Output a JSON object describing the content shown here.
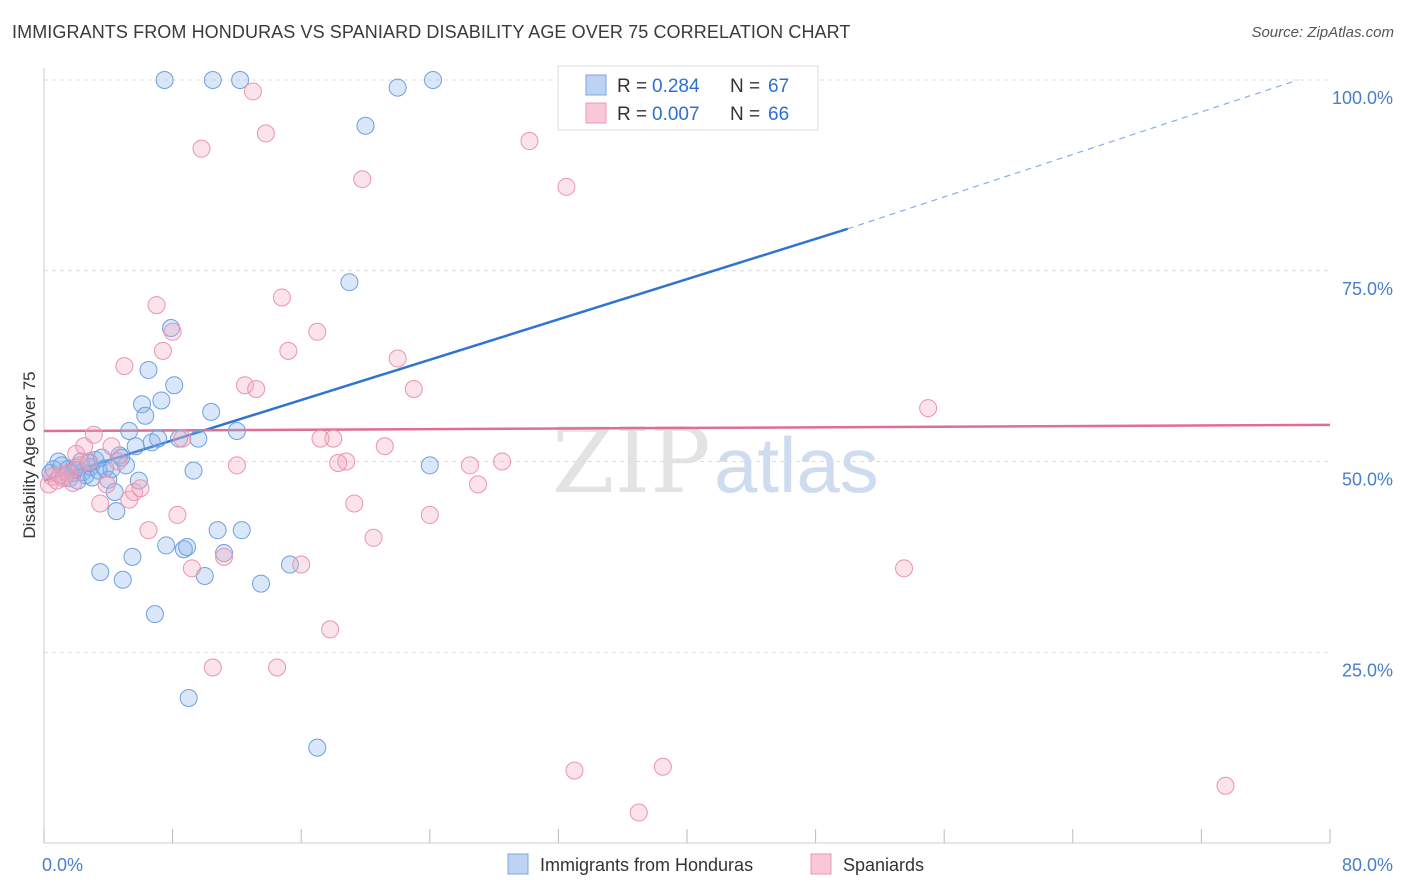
{
  "title": "IMMIGRANTS FROM HONDURAS VS SPANIARD DISABILITY AGE OVER 75 CORRELATION CHART",
  "source": "Source: ZipAtlas.com",
  "watermark": {
    "zip": "ZIP",
    "atlas": "atlas"
  },
  "chart_data": {
    "type": "scatter",
    "title": "IMMIGRANTS FROM HONDURAS VS SPANIARD DISABILITY AGE OVER 75 CORRELATION CHART",
    "xlabel": "",
    "ylabel": "Disability Age Over 75",
    "xlim": [
      0,
      80
    ],
    "ylim": [
      0,
      100
    ],
    "x_tick_labels": [
      {
        "value": 0,
        "label": "0.0%"
      },
      {
        "value": 80,
        "label": "80.0%"
      }
    ],
    "y_tick_labels": [
      {
        "value": 25,
        "label": "25.0%"
      },
      {
        "value": 50,
        "label": "50.0%"
      },
      {
        "value": 75,
        "label": "75.0%"
      },
      {
        "value": 100,
        "label": "100.0%"
      }
    ],
    "legend": [
      {
        "name": "Immigrants from Honduras",
        "color": "#89b4ea",
        "r_label": "R =",
        "r": "0.284",
        "n_label": "N =",
        "n": "67"
      },
      {
        "name": "Spaniards",
        "color": "#f2a7bf",
        "r_label": "R =",
        "r": "0.007",
        "n_label": "N =",
        "n": "66"
      }
    ],
    "series": [
      {
        "name": "Immigrants from Honduras",
        "color": "#89b4ea",
        "trend_color": "#2f74d0",
        "trend": {
          "x0": 0,
          "y0": 47.5,
          "x1": 50,
          "y1": 80.5,
          "dash_to_x": 78,
          "dash_to_y": 100
        },
        "points": [
          [
            0.4,
            48.5
          ],
          [
            0.6,
            49
          ],
          [
            0.9,
            50
          ],
          [
            1.1,
            49.5
          ],
          [
            1.3,
            48
          ],
          [
            1.5,
            49
          ],
          [
            1.6,
            47.8
          ],
          [
            1.8,
            48.5
          ],
          [
            2.0,
            49.2
          ],
          [
            2.1,
            47.5
          ],
          [
            2.3,
            50
          ],
          [
            2.4,
            48.6
          ],
          [
            2.6,
            48.2
          ],
          [
            2.9,
            49.3
          ],
          [
            3.0,
            47.9
          ],
          [
            3.2,
            50.2
          ],
          [
            3.4,
            48.8
          ],
          [
            3.6,
            50.5
          ],
          [
            3.8,
            49.1
          ],
          [
            4.0,
            47.6
          ],
          [
            4.2,
            49
          ],
          [
            4.4,
            46
          ],
          [
            4.5,
            43.5
          ],
          [
            4.7,
            50.8
          ],
          [
            4.9,
            34.5
          ],
          [
            5.1,
            49.5
          ],
          [
            5.3,
            54
          ],
          [
            5.5,
            37.5
          ],
          [
            5.7,
            52
          ],
          [
            5.9,
            47.5
          ],
          [
            6.1,
            57.5
          ],
          [
            6.3,
            56
          ],
          [
            6.5,
            62
          ],
          [
            6.7,
            52.5
          ],
          [
            6.9,
            30
          ],
          [
            7.1,
            53
          ],
          [
            7.3,
            58
          ],
          [
            7.6,
            39
          ],
          [
            7.9,
            67.5
          ],
          [
            8.1,
            60
          ],
          [
            8.4,
            53
          ],
          [
            8.7,
            38.5
          ],
          [
            8.9,
            38.8
          ],
          [
            9.3,
            48.8
          ],
          [
            9.6,
            53
          ],
          [
            10.0,
            35
          ],
          [
            10.4,
            56.5
          ],
          [
            10.8,
            41
          ],
          [
            11.2,
            38
          ],
          [
            12.0,
            54
          ],
          [
            12.3,
            41
          ],
          [
            13.5,
            34
          ],
          [
            15.3,
            36.5
          ],
          [
            17.0,
            12.5
          ],
          [
            19.0,
            73.5
          ],
          [
            20.0,
            94
          ],
          [
            22.0,
            99
          ],
          [
            24.0,
            49.5
          ],
          [
            9.0,
            19
          ],
          [
            7.5,
            100
          ],
          [
            10.5,
            100
          ],
          [
            12.2,
            100
          ],
          [
            24.2,
            100
          ],
          [
            3.5,
            35.5
          ],
          [
            4.8,
            50.5
          ],
          [
            2.8,
            49.8
          ],
          [
            1.9,
            48.9
          ]
        ]
      },
      {
        "name": "Spaniards",
        "color": "#f2a7bf",
        "trend_color": "#e06d93",
        "trend": {
          "x0": 0,
          "y0": 54,
          "x1": 80,
          "y1": 54.8
        },
        "points": [
          [
            0.3,
            47
          ],
          [
            0.5,
            48
          ],
          [
            0.8,
            47.5
          ],
          [
            1.0,
            48.2
          ],
          [
            1.2,
            47.8
          ],
          [
            1.5,
            48.5
          ],
          [
            1.8,
            47.2
          ],
          [
            2.0,
            51
          ],
          [
            2.2,
            49.5
          ],
          [
            2.5,
            52
          ],
          [
            2.8,
            50
          ],
          [
            3.1,
            53.5
          ],
          [
            3.5,
            44.5
          ],
          [
            3.9,
            47
          ],
          [
            4.2,
            52
          ],
          [
            4.6,
            50
          ],
          [
            5.0,
            62.5
          ],
          [
            5.3,
            45
          ],
          [
            5.6,
            46
          ],
          [
            6.0,
            46.5
          ],
          [
            6.5,
            41
          ],
          [
            7.0,
            70.5
          ],
          [
            7.4,
            64.5
          ],
          [
            8.0,
            67
          ],
          [
            8.3,
            43
          ],
          [
            8.6,
            53
          ],
          [
            9.2,
            36
          ],
          [
            9.8,
            91
          ],
          [
            10.5,
            23
          ],
          [
            11.2,
            37.5
          ],
          [
            12.0,
            49.5
          ],
          [
            12.5,
            60
          ],
          [
            13.2,
            59.5
          ],
          [
            13.8,
            93
          ],
          [
            14.5,
            23
          ],
          [
            14.8,
            71.5
          ],
          [
            15.2,
            64.5
          ],
          [
            16.0,
            36.5
          ],
          [
            17.0,
            67
          ],
          [
            17.8,
            28
          ],
          [
            18.0,
            53
          ],
          [
            18.8,
            50
          ],
          [
            19.3,
            44.5
          ],
          [
            19.8,
            87
          ],
          [
            20.5,
            40
          ],
          [
            21.2,
            52
          ],
          [
            22.0,
            63.5
          ],
          [
            23.0,
            59.5
          ],
          [
            24.0,
            43
          ],
          [
            26.5,
            49.5
          ],
          [
            27.0,
            47
          ],
          [
            28.5,
            50
          ],
          [
            30.2,
            92
          ],
          [
            32.5,
            86
          ],
          [
            33.0,
            9.5
          ],
          [
            35.5,
            100
          ],
          [
            36.5,
            100
          ],
          [
            37.3,
            100
          ],
          [
            37.0,
            4
          ],
          [
            38.5,
            10
          ],
          [
            53.5,
            36
          ],
          [
            55.0,
            57
          ],
          [
            73.5,
            7.5
          ],
          [
            13.0,
            98.5
          ],
          [
            17.2,
            53
          ],
          [
            18.3,
            49.8
          ]
        ]
      }
    ]
  }
}
